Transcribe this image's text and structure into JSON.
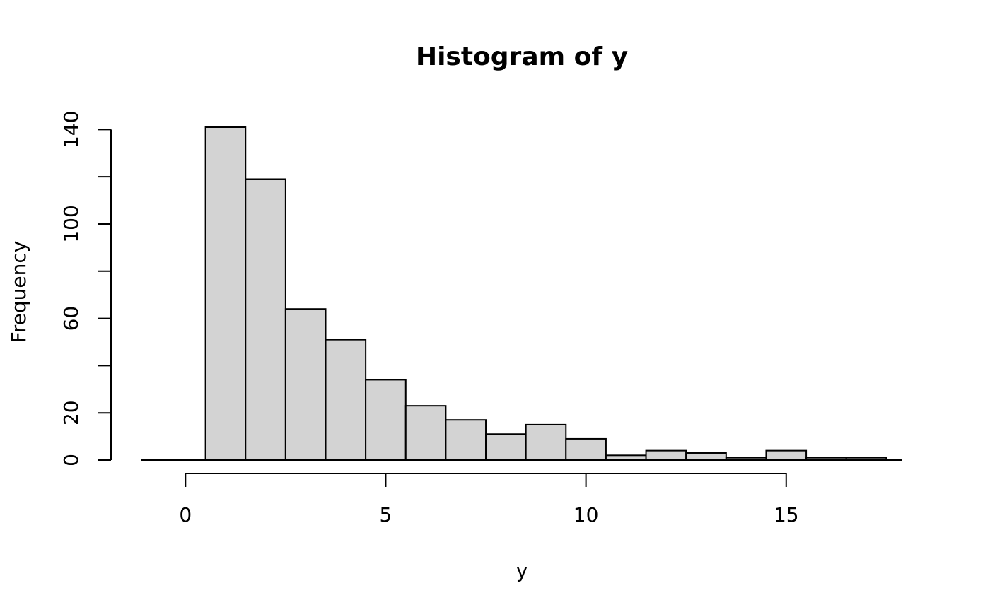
{
  "chart_data": {
    "type": "bar",
    "title": "Histogram of y",
    "xlabel": "y",
    "ylabel": "Frequency",
    "bar_color": "#d3d3d3",
    "edge_color": "#000000",
    "bins": [
      {
        "start": 0.5,
        "end": 1.5,
        "count": 141
      },
      {
        "start": 1.5,
        "end": 2.5,
        "count": 119
      },
      {
        "start": 2.5,
        "end": 3.5,
        "count": 64
      },
      {
        "start": 3.5,
        "end": 4.5,
        "count": 51
      },
      {
        "start": 4.5,
        "end": 5.5,
        "count": 34
      },
      {
        "start": 5.5,
        "end": 6.5,
        "count": 23
      },
      {
        "start": 6.5,
        "end": 7.5,
        "count": 17
      },
      {
        "start": 7.5,
        "end": 8.5,
        "count": 11
      },
      {
        "start": 8.5,
        "end": 9.5,
        "count": 15
      },
      {
        "start": 9.5,
        "end": 10.5,
        "count": 9
      },
      {
        "start": 10.5,
        "end": 11.5,
        "count": 2
      },
      {
        "start": 11.5,
        "end": 12.5,
        "count": 4
      },
      {
        "start": 12.5,
        "end": 13.5,
        "count": 3
      },
      {
        "start": 13.5,
        "end": 14.5,
        "count": 1
      },
      {
        "start": 14.5,
        "end": 15.5,
        "count": 4
      },
      {
        "start": 15.5,
        "end": 16.5,
        "count": 1
      },
      {
        "start": 16.5,
        "end": 17.5,
        "count": 1
      }
    ],
    "x_ticks": [
      0,
      5,
      10,
      15
    ],
    "x_tick_labels": [
      "0",
      "5",
      "10",
      "15"
    ],
    "y_ticks": [
      0,
      20,
      40,
      60,
      80,
      100,
      120,
      140
    ],
    "y_tick_labels": [
      "0",
      "20",
      "",
      "60",
      "",
      "100",
      "",
      "140"
    ],
    "xlim": [
      -1.1,
      17.9
    ],
    "ylim": [
      0,
      141
    ]
  }
}
